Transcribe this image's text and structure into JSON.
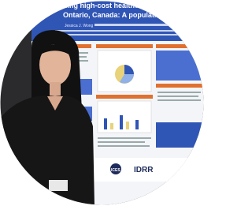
{
  "poster": {
    "title_lines": [
      "...ming high-cost healthcare users a",
      "Ontario, Canada: A population-based c"
    ],
    "authors": "Jessica J. Wong",
    "logos": [
      "ICES",
      "IDRR"
    ]
  }
}
